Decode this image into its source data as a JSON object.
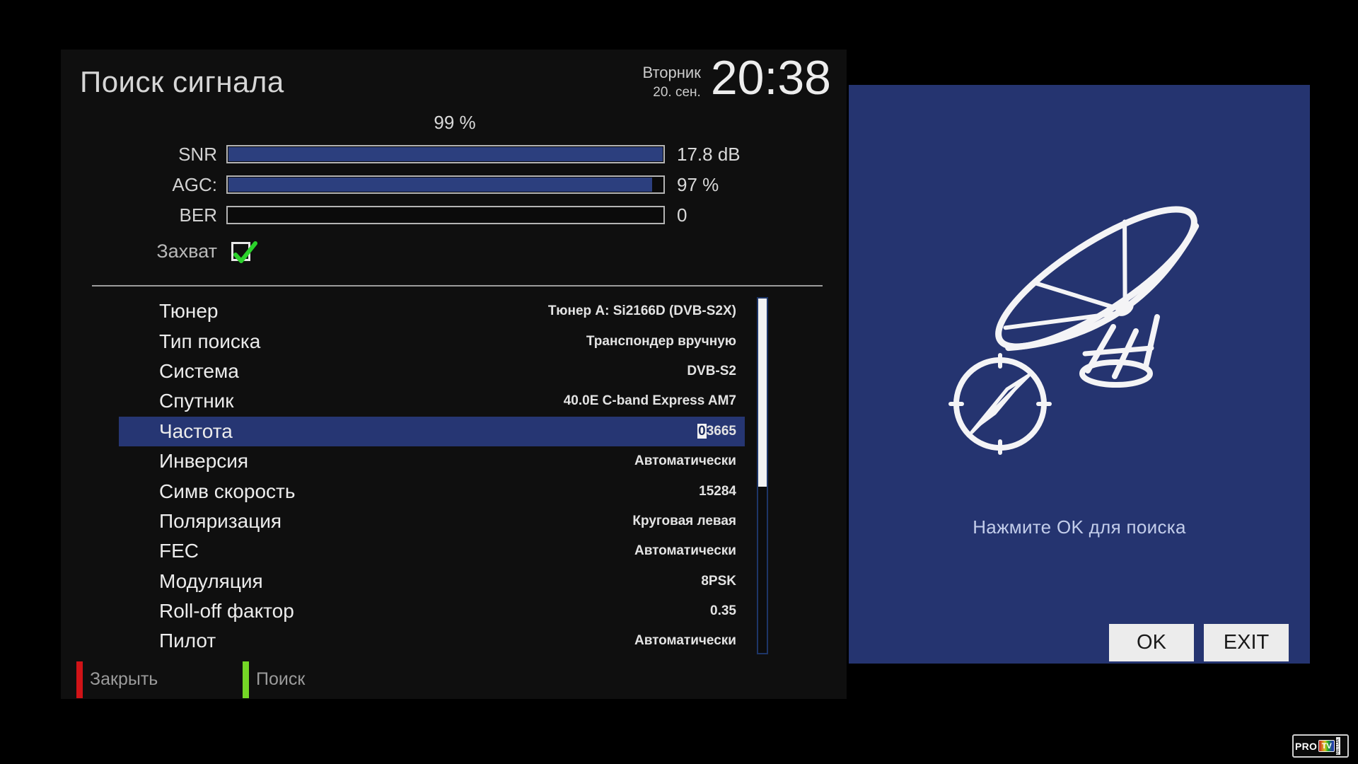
{
  "header": {
    "title": "Поиск сигнала",
    "day": "Вторник",
    "date": "20. сен.",
    "time": "20:38"
  },
  "signal": {
    "quality": "99 %",
    "meters": [
      {
        "label": "SNR",
        "value": "17.8 dB",
        "fill_percent": 100
      },
      {
        "label": "AGC:",
        "value": "97 %",
        "fill_percent": 97.5
      },
      {
        "label": "BER",
        "value": "0",
        "fill_percent": 0
      }
    ],
    "lock": {
      "label": "Захват",
      "checked": true
    }
  },
  "settings": {
    "rows": [
      {
        "label": "Тюнер",
        "value": "Тюнер A: Si2166D (DVB-S2X)"
      },
      {
        "label": "Тип поиска",
        "value": "Транспондер вручную"
      },
      {
        "label": "Система",
        "value": "DVB-S2"
      },
      {
        "label": "Спутник",
        "value": "40.0E C-band Express AM7"
      },
      {
        "label": "Частота",
        "value": "03665",
        "selected": true,
        "cursor_prefix": "0",
        "value_rest": "3665"
      },
      {
        "label": "Инверсия",
        "value": "Автоматически"
      },
      {
        "label": "Симв скорость",
        "value": "15284"
      },
      {
        "label": "Поляризация",
        "value": "Круговая левая"
      },
      {
        "label": "FEC",
        "value": "Автоматически"
      },
      {
        "label": "Модуляция",
        "value": "8PSK"
      },
      {
        "label": "Roll-off фактор",
        "value": "0.35"
      },
      {
        "label": "Пилот",
        "value": "Автоматически"
      }
    ],
    "scrollbar": {
      "thumb_percent": 53,
      "thumb_top_percent": 0
    }
  },
  "footer": {
    "close_label": "Закрыть",
    "search_label": "Поиск"
  },
  "panel": {
    "message": "Нажмите OK для поиска",
    "ok_label": "OK",
    "exit_label": "EXIT"
  },
  "logo": {
    "pro": "PRO",
    "tv": "TV",
    "suffix": "NET.UA"
  },
  "colors": {
    "panel_blue": "#253470",
    "selected_row": "#263673",
    "meter_fill": "#2c3f7e",
    "key_red": "#d01317",
    "key_green": "#74d626",
    "check_green": "#2bd12b"
  }
}
